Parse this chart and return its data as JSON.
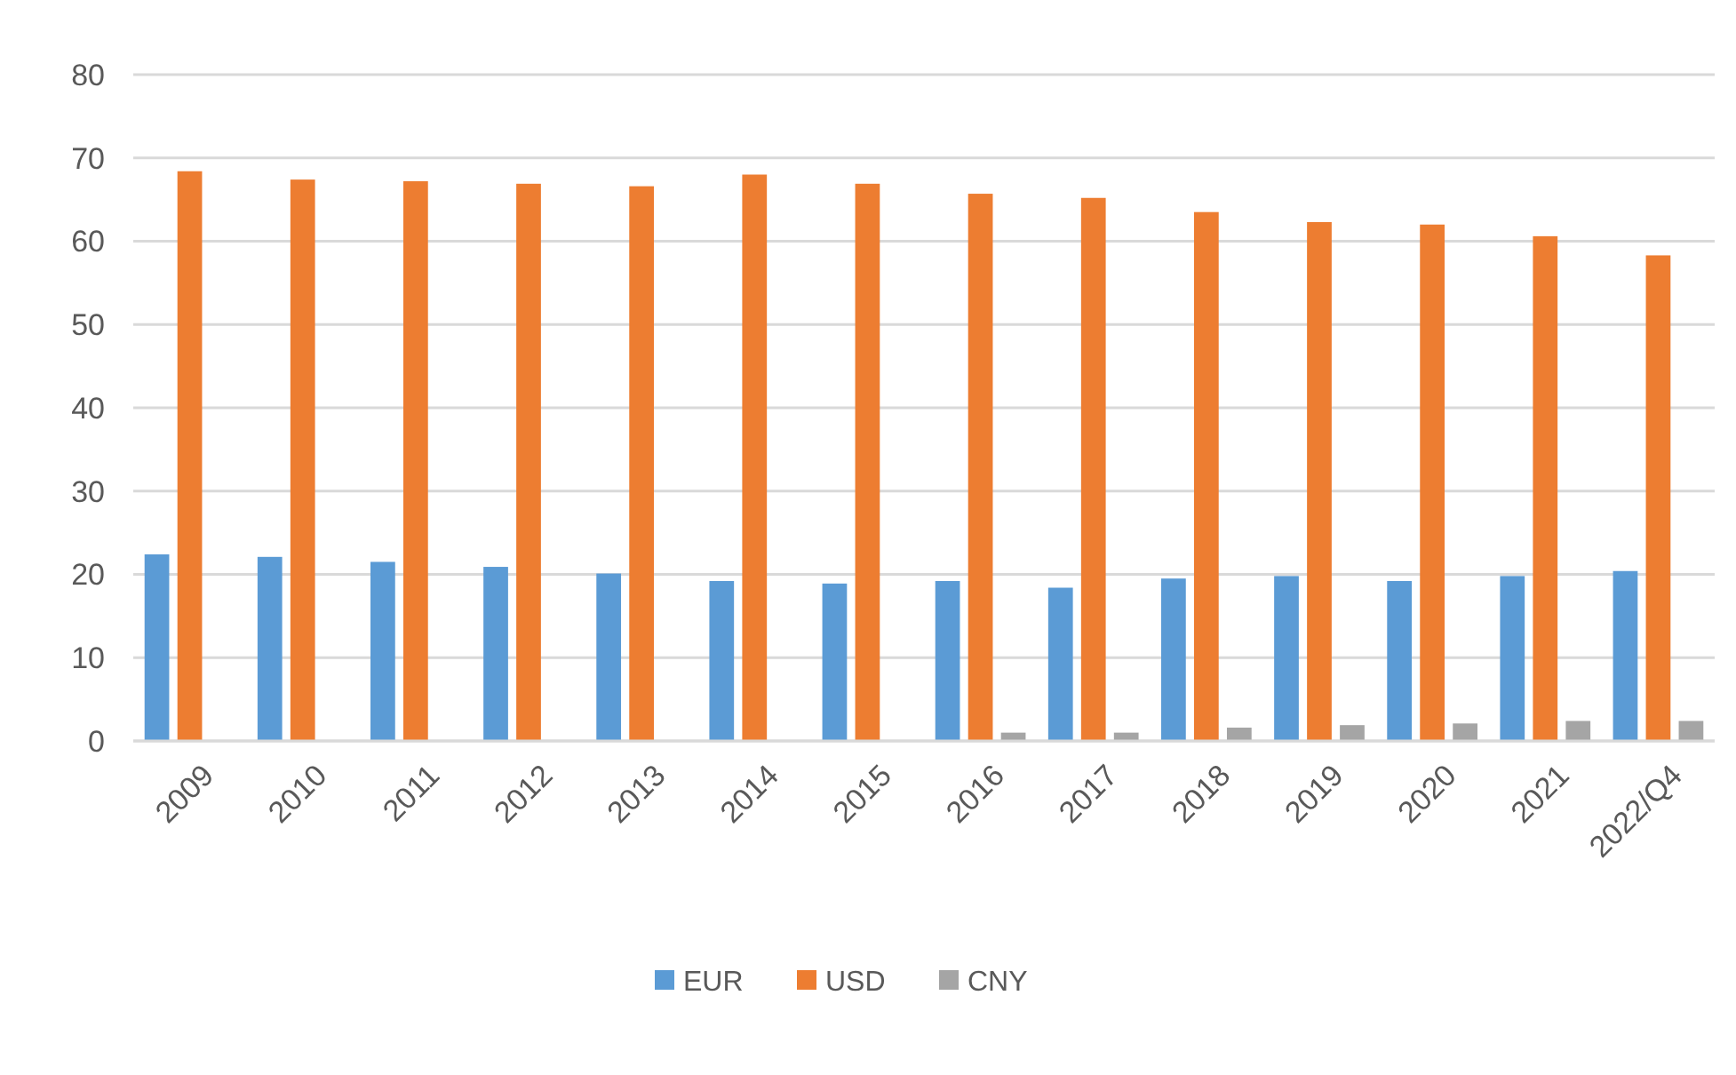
{
  "chart_data": {
    "type": "bar",
    "categories": [
      "2009",
      "2010",
      "2011",
      "2012",
      "2013",
      "2014",
      "2015",
      "2016",
      "2017",
      "2018",
      "2019",
      "2020",
      "2021",
      "2022/Q4"
    ],
    "series": [
      {
        "name": "EUR",
        "color": "#5b9bd5",
        "values": [
          22.4,
          22.1,
          21.5,
          20.9,
          20.1,
          19.2,
          18.9,
          19.2,
          18.4,
          19.5,
          19.8,
          19.2,
          19.8,
          20.4
        ]
      },
      {
        "name": "USD",
        "color": "#ed7d31",
        "values": [
          68.4,
          67.4,
          67.2,
          66.9,
          66.6,
          68.0,
          66.9,
          65.7,
          65.2,
          63.5,
          62.3,
          62.0,
          60.6,
          58.3
        ]
      },
      {
        "name": "CNY",
        "color": "#a5a5a5",
        "values": [
          null,
          null,
          null,
          null,
          null,
          null,
          null,
          1.0,
          1.0,
          1.6,
          1.9,
          2.1,
          2.4,
          2.4
        ]
      }
    ],
    "ylim": [
      0,
      80
    ],
    "yticks": [
      0,
      10,
      20,
      30,
      40,
      50,
      60,
      70,
      80
    ],
    "grid": "y",
    "legend": "bottom"
  }
}
